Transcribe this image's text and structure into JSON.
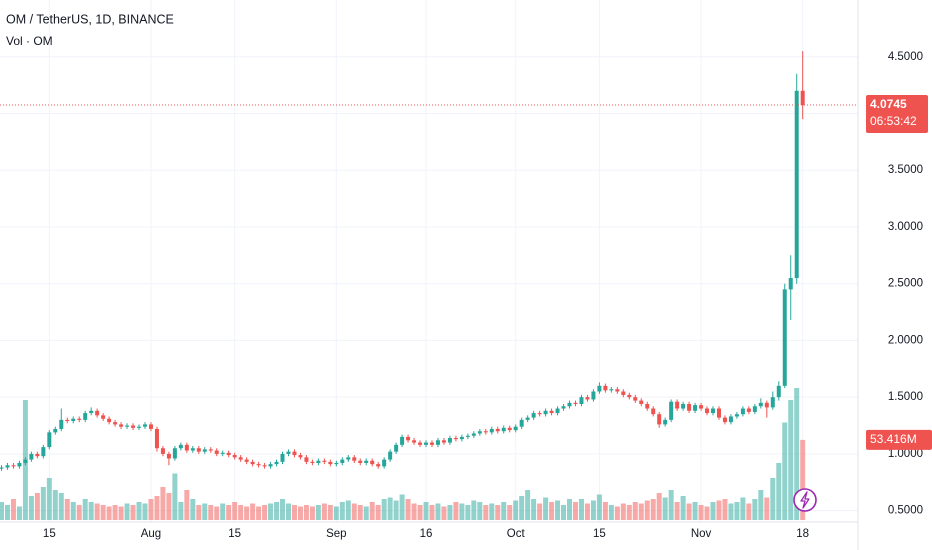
{
  "chart_data": {
    "type": "candlestick",
    "title": "OM / TetherUS, 1D, BINANCE",
    "subtitle": "Vol · OM",
    "countdown": "06:53:42",
    "volume_last_label": "53.416M",
    "up_color": "#26a69a",
    "down_color": "#ef5350",
    "grid": true,
    "xlim": [
      -0.25,
      143.25
    ],
    "ylim": [
      0.4,
      5.0
    ],
    "xticks": [
      {
        "value": 8,
        "label": "15"
      },
      {
        "value": 25,
        "label": "Aug"
      },
      {
        "value": 39,
        "label": "15"
      },
      {
        "value": 56,
        "label": "Sep"
      },
      {
        "value": 71,
        "label": "16"
      },
      {
        "value": 86,
        "label": "Oct"
      },
      {
        "value": 100,
        "label": "15"
      },
      {
        "value": 117,
        "label": "Nov"
      },
      {
        "value": 134,
        "label": "18"
      }
    ],
    "yticks": [
      {
        "value": 0.5,
        "label": "0.5000"
      },
      {
        "value": 1.0,
        "label": "1.0000"
      },
      {
        "value": 1.5,
        "label": "1.5000"
      },
      {
        "value": 2.0,
        "label": "2.0000"
      },
      {
        "value": 2.5,
        "label": "2.5000"
      },
      {
        "value": 3.0,
        "label": "3.0000"
      },
      {
        "value": 3.5,
        "label": "3.5000"
      },
      {
        "value": 4.0,
        "label": "4.0000"
      },
      {
        "value": 4.5,
        "label": "4.5000"
      }
    ],
    "x": [
      0,
      1,
      2,
      3,
      4,
      5,
      6,
      7,
      8,
      9,
      10,
      11,
      12,
      13,
      14,
      15,
      16,
      17,
      18,
      19,
      20,
      21,
      22,
      23,
      24,
      25,
      26,
      27,
      28,
      29,
      30,
      31,
      32,
      33,
      34,
      35,
      36,
      37,
      38,
      39,
      40,
      41,
      42,
      43,
      44,
      45,
      46,
      47,
      48,
      49,
      50,
      51,
      52,
      53,
      54,
      55,
      56,
      57,
      58,
      59,
      60,
      61,
      62,
      63,
      64,
      65,
      66,
      67,
      68,
      69,
      70,
      71,
      72,
      73,
      74,
      75,
      76,
      77,
      78,
      79,
      80,
      81,
      82,
      83,
      84,
      85,
      86,
      87,
      88,
      89,
      90,
      91,
      92,
      93,
      94,
      95,
      96,
      97,
      98,
      99,
      100,
      101,
      102,
      103,
      104,
      105,
      106,
      107,
      108,
      109,
      110,
      111,
      112,
      113,
      114,
      115,
      116,
      117,
      118,
      119,
      120,
      121,
      122,
      123,
      124,
      125,
      126,
      127,
      128,
      129,
      130,
      131,
      132,
      133,
      134
    ],
    "open": [
      0.87,
      0.88,
      0.9,
      0.89,
      0.92,
      0.95,
      1.0,
      0.98,
      1.06,
      1.19,
      1.22,
      1.3,
      1.29,
      1.31,
      1.3,
      1.36,
      1.38,
      1.34,
      1.31,
      1.28,
      1.26,
      1.24,
      1.25,
      1.23,
      1.24,
      1.26,
      1.22,
      1.05,
      1.0,
      0.96,
      1.05,
      1.08,
      1.03,
      1.05,
      1.02,
      1.04,
      1.03,
      1.0,
      1.01,
      0.99,
      0.97,
      0.95,
      0.93,
      0.91,
      0.9,
      0.89,
      0.91,
      0.93,
      1.0,
      1.02,
      0.99,
      0.97,
      0.93,
      0.92,
      0.94,
      0.93,
      0.91,
      0.92,
      0.95,
      0.97,
      0.94,
      0.92,
      0.94,
      0.91,
      0.89,
      0.95,
      1.02,
      1.08,
      1.15,
      1.12,
      1.1,
      1.08,
      1.1,
      1.08,
      1.12,
      1.1,
      1.14,
      1.13,
      1.15,
      1.16,
      1.18,
      1.2,
      1.19,
      1.22,
      1.2,
      1.23,
      1.21,
      1.24,
      1.3,
      1.32,
      1.36,
      1.35,
      1.38,
      1.36,
      1.4,
      1.42,
      1.45,
      1.44,
      1.5,
      1.48,
      1.55,
      1.6,
      1.56,
      1.57,
      1.55,
      1.52,
      1.5,
      1.47,
      1.44,
      1.4,
      1.35,
      1.26,
      1.3,
      1.46,
      1.4,
      1.44,
      1.38,
      1.43,
      1.4,
      1.36,
      1.4,
      1.32,
      1.28,
      1.33,
      1.35,
      1.4,
      1.37,
      1.42,
      1.45,
      1.41,
      1.5,
      1.6,
      2.45,
      2.55,
      4.2
    ],
    "high": [
      0.9,
      0.92,
      0.92,
      0.94,
      0.97,
      1.02,
      1.02,
      1.08,
      1.21,
      1.24,
      1.4,
      1.32,
      1.33,
      1.33,
      1.38,
      1.41,
      1.4,
      1.36,
      1.33,
      1.3,
      1.28,
      1.27,
      1.27,
      1.26,
      1.28,
      1.28,
      1.24,
      1.07,
      1.02,
      1.07,
      1.1,
      1.1,
      1.07,
      1.07,
      1.06,
      1.06,
      1.05,
      1.03,
      1.03,
      1.01,
      0.99,
      0.97,
      0.95,
      0.93,
      0.92,
      0.93,
      0.95,
      1.02,
      1.04,
      1.04,
      1.01,
      0.99,
      0.95,
      0.96,
      0.96,
      0.95,
      0.94,
      0.97,
      0.99,
      0.99,
      0.96,
      0.96,
      0.96,
      0.93,
      0.97,
      1.04,
      1.1,
      1.17,
      1.17,
      1.14,
      1.12,
      1.12,
      1.12,
      1.14,
      1.14,
      1.16,
      1.16,
      1.17,
      1.18,
      1.2,
      1.22,
      1.22,
      1.24,
      1.24,
      1.25,
      1.25,
      1.26,
      1.32,
      1.34,
      1.38,
      1.38,
      1.4,
      1.4,
      1.42,
      1.44,
      1.47,
      1.47,
      1.52,
      1.52,
      1.57,
      1.63,
      1.62,
      1.59,
      1.59,
      1.57,
      1.54,
      1.52,
      1.49,
      1.46,
      1.42,
      1.37,
      1.32,
      1.48,
      1.48,
      1.46,
      1.46,
      1.45,
      1.45,
      1.42,
      1.42,
      1.42,
      1.34,
      1.35,
      1.37,
      1.42,
      1.42,
      1.44,
      1.49,
      1.47,
      1.55,
      1.64,
      2.5,
      2.75,
      4.35,
      4.55
    ],
    "low": [
      0.85,
      0.86,
      0.87,
      0.87,
      0.9,
      0.93,
      0.96,
      0.96,
      1.04,
      1.17,
      1.2,
      1.27,
      1.27,
      1.28,
      1.28,
      1.34,
      1.32,
      1.29,
      1.26,
      1.24,
      1.22,
      1.22,
      1.21,
      1.21,
      1.22,
      1.2,
      1.02,
      0.98,
      0.9,
      0.94,
      1.03,
      1.01,
      1.01,
      1.0,
      1.0,
      1.01,
      0.98,
      0.98,
      0.97,
      0.95,
      0.93,
      0.91,
      0.89,
      0.88,
      0.87,
      0.87,
      0.89,
      0.91,
      0.98,
      0.97,
      0.95,
      0.91,
      0.9,
      0.9,
      0.91,
      0.89,
      0.89,
      0.9,
      0.93,
      0.92,
      0.9,
      0.9,
      0.89,
      0.87,
      0.87,
      0.93,
      1.0,
      1.06,
      1.1,
      1.08,
      1.06,
      1.06,
      1.06,
      1.06,
      1.08,
      1.08,
      1.11,
      1.11,
      1.13,
      1.14,
      1.16,
      1.17,
      1.17,
      1.18,
      1.18,
      1.19,
      1.19,
      1.22,
      1.28,
      1.3,
      1.33,
      1.33,
      1.34,
      1.34,
      1.38,
      1.4,
      1.42,
      1.42,
      1.46,
      1.46,
      1.53,
      1.54,
      1.54,
      1.53,
      1.5,
      1.48,
      1.45,
      1.42,
      1.38,
      1.33,
      1.23,
      1.24,
      1.28,
      1.38,
      1.38,
      1.36,
      1.36,
      1.38,
      1.34,
      1.34,
      1.3,
      1.26,
      1.26,
      1.31,
      1.33,
      1.35,
      1.35,
      1.4,
      1.32,
      1.39,
      1.47,
      1.58,
      2.18,
      2.5,
      3.95
    ],
    "close": [
      0.88,
      0.9,
      0.89,
      0.92,
      0.95,
      1.0,
      0.98,
      1.06,
      1.19,
      1.22,
      1.3,
      1.29,
      1.31,
      1.3,
      1.36,
      1.38,
      1.34,
      1.31,
      1.28,
      1.26,
      1.24,
      1.25,
      1.23,
      1.24,
      1.26,
      1.22,
      1.05,
      1.0,
      0.96,
      1.05,
      1.08,
      1.03,
      1.05,
      1.02,
      1.04,
      1.03,
      1.0,
      1.01,
      0.99,
      0.97,
      0.95,
      0.93,
      0.91,
      0.9,
      0.89,
      0.91,
      0.93,
      1.0,
      1.02,
      0.99,
      0.97,
      0.93,
      0.92,
      0.94,
      0.93,
      0.91,
      0.92,
      0.95,
      0.97,
      0.94,
      0.92,
      0.94,
      0.91,
      0.89,
      0.95,
      1.02,
      1.08,
      1.15,
      1.12,
      1.1,
      1.08,
      1.1,
      1.08,
      1.12,
      1.1,
      1.14,
      1.13,
      1.15,
      1.16,
      1.18,
      1.2,
      1.19,
      1.22,
      1.2,
      1.23,
      1.21,
      1.24,
      1.3,
      1.32,
      1.36,
      1.35,
      1.38,
      1.36,
      1.4,
      1.42,
      1.45,
      1.44,
      1.5,
      1.48,
      1.55,
      1.6,
      1.56,
      1.57,
      1.55,
      1.52,
      1.5,
      1.47,
      1.44,
      1.4,
      1.35,
      1.26,
      1.3,
      1.46,
      1.4,
      1.44,
      1.38,
      1.43,
      1.4,
      1.36,
      1.4,
      1.32,
      1.28,
      1.33,
      1.35,
      1.4,
      1.37,
      1.42,
      1.45,
      1.41,
      1.5,
      1.6,
      2.45,
      2.55,
      4.2,
      4.0745
    ],
    "volume": [
      12,
      10,
      14,
      9,
      80,
      16,
      18,
      22,
      28,
      20,
      18,
      14,
      12,
      10,
      14,
      12,
      11,
      10,
      9,
      10,
      9,
      11,
      10,
      12,
      11,
      14,
      16,
      22,
      18,
      31,
      12,
      20,
      14,
      10,
      11,
      10,
      9,
      11,
      10,
      12,
      10,
      9,
      11,
      9,
      10,
      11,
      12,
      14,
      11,
      10,
      9,
      10,
      9,
      10,
      11,
      10,
      9,
      12,
      13,
      11,
      10,
      9,
      12,
      10,
      14,
      15,
      13,
      17,
      14,
      11,
      10,
      12,
      10,
      11,
      9,
      10,
      12,
      11,
      10,
      13,
      12,
      10,
      11,
      10,
      12,
      10,
      13,
      16,
      20,
      14,
      11,
      15,
      12,
      13,
      10,
      14,
      12,
      14,
      11,
      13,
      17,
      12,
      10,
      9,
      11,
      10,
      12,
      11,
      13,
      14,
      18,
      15,
      20,
      12,
      16,
      11,
      12,
      10,
      9,
      12,
      13,
      14,
      11,
      12,
      15,
      11,
      14,
      20,
      15,
      28,
      38,
      65,
      80,
      88,
      53.416
    ]
  }
}
